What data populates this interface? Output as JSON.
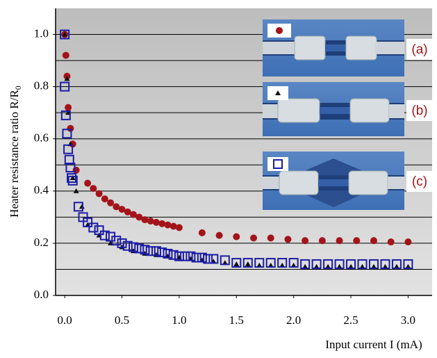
{
  "chart_data": {
    "type": "scatter",
    "xlabel": "Input current I (mA)",
    "ylabel": "Heater resistance ratio R/R",
    "ylabel_subscript": "0",
    "xlim": [
      -0.08,
      3.21
    ],
    "ylim": [
      0,
      1.1
    ],
    "xticks": [
      {
        "value": 0,
        "label": "0.0"
      },
      0.5,
      {
        "value": 1,
        "label": "1.0"
      },
      1.5,
      {
        "value": 2,
        "label": "2.0"
      },
      2.5,
      {
        "value": 3,
        "label": "3.0"
      }
    ],
    "yticks": [
      {
        "value": 0,
        "label": "0.0"
      },
      0.2,
      0.4,
      0.6,
      0.8,
      {
        "value": 1,
        "label": "1.0"
      }
    ],
    "grid": true,
    "ygrid": [
      0.1,
      0.2,
      0.3,
      0.4,
      0.5,
      0.6,
      0.7,
      0.8,
      0.9,
      1.0
    ],
    "series": [
      {
        "name": "(a)",
        "color": "#a3141a",
        "marker": "circle",
        "x": [
          0,
          0.01,
          0.02,
          0.03,
          0.05,
          0.07,
          0.1,
          0.2,
          0.25,
          0.3,
          0.35,
          0.4,
          0.45,
          0.5,
          0.55,
          0.6,
          0.65,
          0.7,
          0.75,
          0.8,
          0.85,
          0.9,
          0.95,
          1.0,
          1.2,
          1.35,
          1.5,
          1.65,
          1.8,
          1.95,
          2.1,
          2.25,
          2.4,
          2.55,
          2.7,
          2.85,
          3.0
        ],
        "values": [
          1.0,
          0.92,
          0.84,
          0.72,
          0.64,
          0.58,
          0.48,
          0.43,
          0.41,
          0.39,
          0.37,
          0.355,
          0.34,
          0.33,
          0.32,
          0.31,
          0.3,
          0.29,
          0.285,
          0.28,
          0.275,
          0.27,
          0.265,
          0.26,
          0.24,
          0.23,
          0.225,
          0.22,
          0.22,
          0.215,
          0.21,
          0.21,
          0.21,
          0.21,
          0.21,
          0.205,
          0.205
        ]
      },
      {
        "name": "(b)",
        "color": "#111111",
        "marker": "triangle",
        "x": [
          0,
          0.02,
          0.03,
          0.05,
          0.07,
          0.1,
          0.15,
          0.2,
          0.3,
          0.4,
          0.5,
          0.6,
          0.7,
          0.8,
          0.9,
          1.0,
          1.1,
          1.2,
          1.3,
          1.4,
          1.5,
          1.6,
          1.7,
          1.8,
          1.9,
          2.0,
          2.1,
          2.2,
          2.3,
          2.4,
          2.5,
          2.6,
          2.7,
          2.8,
          2.9,
          3.0
        ],
        "values": [
          1.0,
          0.83,
          0.7,
          0.58,
          0.45,
          0.4,
          0.34,
          0.27,
          0.23,
          0.2,
          0.185,
          0.17,
          0.16,
          0.155,
          0.15,
          0.145,
          0.14,
          0.135,
          0.13,
          0.125,
          0.12,
          0.12,
          0.115,
          0.115,
          0.115,
          0.115,
          0.11,
          0.11,
          0.11,
          0.11,
          0.11,
          0.11,
          0.11,
          0.11,
          0.11,
          0.11
        ]
      },
      {
        "name": "(c)",
        "color": "#1c1ca6",
        "marker": "square",
        "x": [
          0,
          0.0,
          0.01,
          0.02,
          0.03,
          0.04,
          0.05,
          0.06,
          0.07,
          0.12,
          0.16,
          0.2,
          0.25,
          0.3,
          0.35,
          0.4,
          0.45,
          0.5,
          0.55,
          0.6,
          0.65,
          0.7,
          0.75,
          0.8,
          0.85,
          0.9,
          0.95,
          1.0,
          1.05,
          1.1,
          1.15,
          1.2,
          1.25,
          1.3,
          1.4,
          1.5,
          1.6,
          1.7,
          1.8,
          1.9,
          2.0,
          2.1,
          2.2,
          2.3,
          2.4,
          2.5,
          2.6,
          2.7,
          2.8,
          2.9,
          3.0
        ],
        "values": [
          1.0,
          0.8,
          0.69,
          0.62,
          0.56,
          0.52,
          0.49,
          0.45,
          0.44,
          0.34,
          0.3,
          0.28,
          0.26,
          0.25,
          0.23,
          0.225,
          0.21,
          0.2,
          0.19,
          0.185,
          0.18,
          0.175,
          0.17,
          0.17,
          0.165,
          0.16,
          0.155,
          0.15,
          0.15,
          0.15,
          0.145,
          0.145,
          0.14,
          0.14,
          0.135,
          0.125,
          0.125,
          0.125,
          0.125,
          0.125,
          0.125,
          0.12,
          0.12,
          0.12,
          0.12,
          0.12,
          0.12,
          0.12,
          0.12,
          0.12,
          0.12
        ]
      }
    ]
  }
}
